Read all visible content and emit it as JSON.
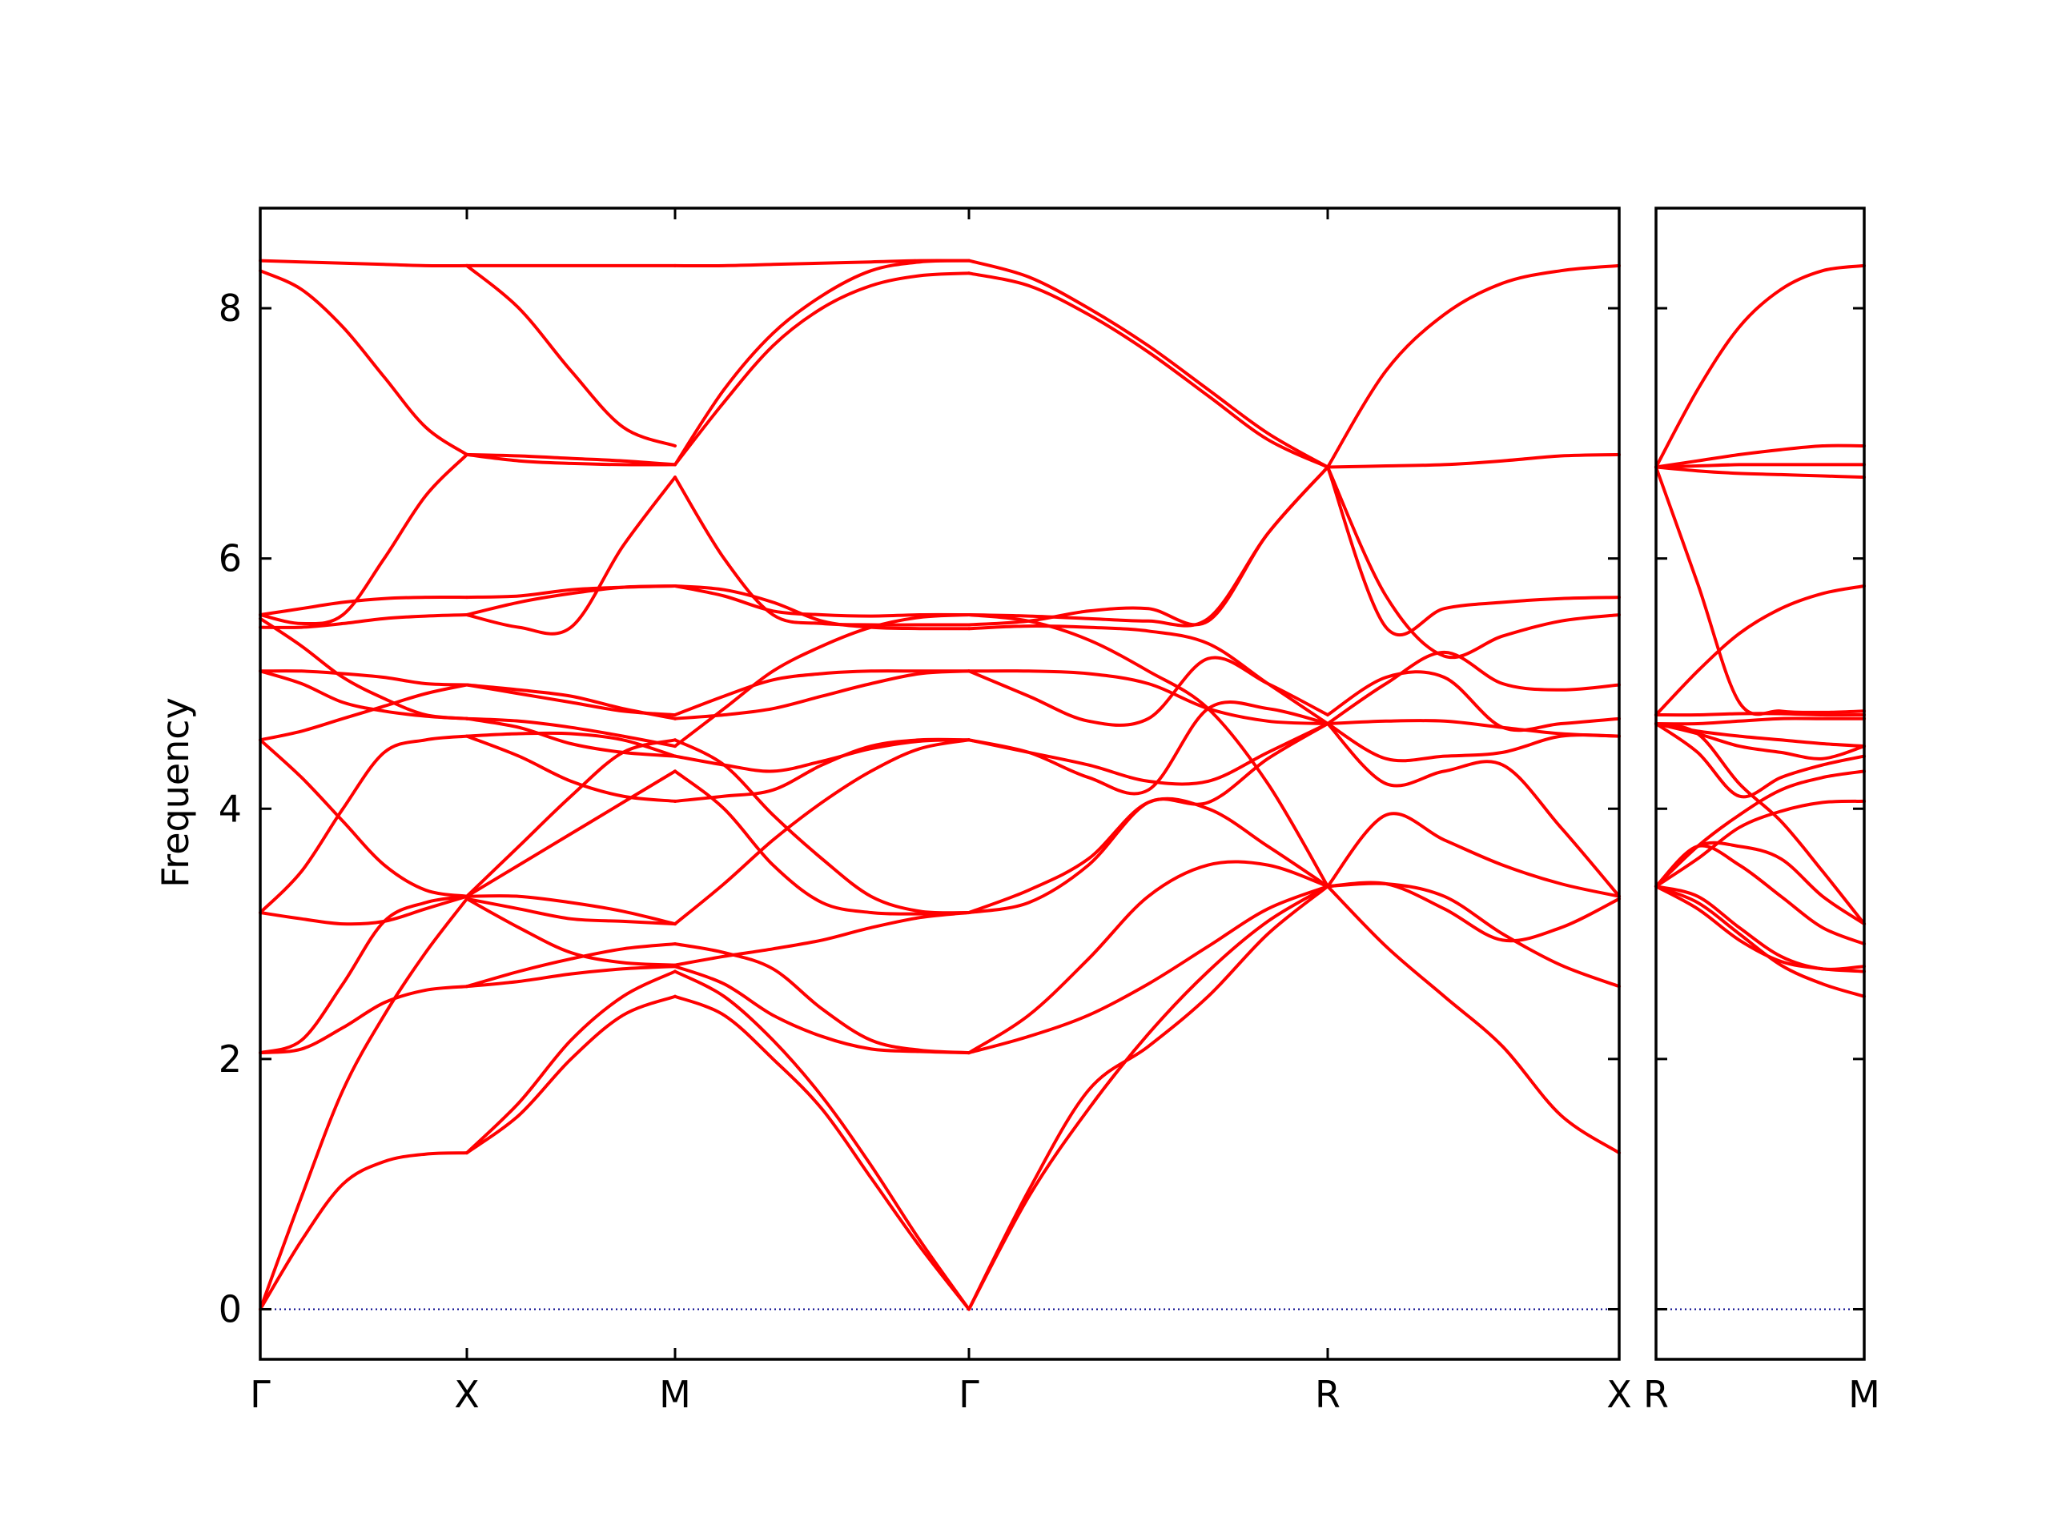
{
  "chart_data": {
    "type": "line",
    "ylabel": "Frequency",
    "ylim": [
      -0.4,
      8.8
    ],
    "yticks": [
      0,
      2,
      4,
      6,
      8
    ],
    "band_color": "#ff0000",
    "zero_line_color": "#00008b",
    "panels": [
      {
        "segments": [
          {
            "labels": [
              "Γ",
              "X"
            ],
            "bands": [
              [
                0.0,
                0.55,
                1.0,
                1.18,
                1.24,
                1.25
              ],
              [
                0.0,
                0.9,
                1.75,
                2.35,
                2.85,
                3.28
              ],
              [
                2.05,
                2.08,
                2.25,
                2.45,
                2.55,
                2.58
              ],
              [
                2.05,
                2.15,
                2.6,
                3.1,
                3.25,
                3.3
              ],
              [
                3.17,
                3.12,
                3.08,
                3.1,
                3.2,
                3.3
              ],
              [
                3.17,
                3.5,
                4.0,
                4.45,
                4.55,
                4.58
              ],
              [
                4.55,
                4.25,
                3.9,
                3.55,
                3.35,
                3.3
              ],
              [
                4.55,
                4.62,
                4.72,
                4.82,
                4.92,
                4.99
              ],
              [
                5.1,
                5.1,
                5.08,
                5.05,
                5.0,
                4.99
              ],
              [
                5.1,
                5.0,
                4.85,
                4.78,
                4.74,
                4.72
              ],
              [
                5.45,
                5.45,
                5.48,
                5.52,
                5.54,
                5.55
              ],
              [
                5.52,
                5.3,
                5.05,
                4.88,
                4.75,
                4.72
              ],
              [
                5.55,
                5.6,
                5.65,
                5.68,
                5.69,
                5.69
              ],
              [
                5.55,
                5.48,
                5.55,
                6.0,
                6.5,
                6.83
              ],
              [
                8.3,
                8.15,
                7.85,
                7.45,
                7.05,
                6.83
              ],
              [
                8.38,
                8.37,
                8.36,
                8.35,
                8.34,
                8.34
              ]
            ]
          },
          {
            "labels": [
              "X",
              "M"
            ],
            "bands": [
              [
                1.25,
                1.55,
                2.0,
                2.35,
                2.5
              ],
              [
                1.25,
                1.65,
                2.15,
                2.5,
                2.7
              ],
              [
                2.58,
                2.62,
                2.68,
                2.72,
                2.74
              ],
              [
                2.58,
                2.7,
                2.8,
                2.88,
                2.92
              ],
              [
                3.28,
                3.05,
                2.85,
                2.77,
                2.75
              ],
              [
                3.28,
                3.2,
                3.12,
                3.1,
                3.08
              ],
              [
                3.3,
                3.3,
                3.25,
                3.18,
                3.08
              ],
              [
                3.3,
                3.55,
                3.8,
                4.05,
                4.3
              ],
              [
                3.3,
                3.7,
                4.1,
                4.45,
                4.55
              ],
              [
                4.58,
                4.6,
                4.6,
                4.55,
                4.42
              ],
              [
                4.58,
                4.42,
                4.22,
                4.1,
                4.06
              ],
              [
                4.72,
                4.65,
                4.52,
                4.45,
                4.42
              ],
              [
                4.72,
                4.7,
                4.65,
                4.58,
                4.5
              ],
              [
                4.99,
                4.95,
                4.9,
                4.8,
                4.72
              ],
              [
                4.99,
                4.92,
                4.85,
                4.78,
                4.75
              ],
              [
                5.55,
                5.65,
                5.72,
                5.77,
                5.78
              ],
              [
                5.69,
                5.7,
                5.75,
                5.77,
                5.78
              ],
              [
                5.55,
                5.45,
                5.45,
                6.1,
                6.65
              ],
              [
                6.83,
                6.82,
                6.8,
                6.78,
                6.75
              ],
              [
                6.83,
                6.78,
                6.76,
                6.75,
                6.75
              ],
              [
                8.34,
                8.0,
                7.5,
                7.05,
                6.9
              ],
              [
                8.34,
                8.34,
                8.34,
                8.34,
                8.34
              ]
            ]
          },
          {
            "labels": [
              "M",
              "Γ"
            ],
            "bands": [
              [
                2.5,
                2.35,
                2.0,
                1.6,
                1.05,
                0.5,
                0.0
              ],
              [
                2.7,
                2.5,
                2.15,
                1.7,
                1.15,
                0.55,
                0.0
              ],
              [
                2.74,
                2.6,
                2.35,
                2.18,
                2.08,
                2.06,
                2.05
              ],
              [
                2.92,
                2.85,
                2.72,
                2.4,
                2.15,
                2.07,
                2.05
              ],
              [
                2.75,
                2.82,
                2.88,
                2.95,
                3.05,
                3.13,
                3.17
              ],
              [
                3.08,
                3.4,
                3.75,
                4.05,
                4.3,
                4.48,
                4.55
              ],
              [
                4.3,
                4.0,
                3.55,
                3.25,
                3.17,
                3.16,
                3.17
              ],
              [
                4.55,
                4.35,
                3.95,
                3.6,
                3.3,
                3.18,
                3.17
              ],
              [
                4.06,
                4.1,
                4.15,
                4.35,
                4.5,
                4.55,
                4.55
              ],
              [
                4.42,
                4.35,
                4.3,
                4.38,
                4.48,
                4.54,
                4.55
              ],
              [
                4.5,
                4.8,
                5.1,
                5.3,
                5.45,
                5.53,
                5.55
              ],
              [
                4.72,
                4.75,
                4.8,
                4.9,
                5.0,
                5.08,
                5.1
              ],
              [
                4.75,
                4.9,
                5.03,
                5.08,
                5.1,
                5.1,
                5.1
              ],
              [
                5.78,
                5.75,
                5.65,
                5.5,
                5.45,
                5.44,
                5.44
              ],
              [
                5.78,
                5.7,
                5.58,
                5.55,
                5.54,
                5.55,
                5.55
              ],
              [
                6.65,
                6.0,
                5.55,
                5.48,
                5.47,
                5.47,
                5.47
              ],
              [
                6.75,
                7.35,
                7.8,
                8.1,
                8.3,
                8.37,
                8.38
              ],
              [
                6.75,
                7.25,
                7.7,
                8.0,
                8.18,
                8.26,
                8.28
              ],
              [
                8.34,
                8.34,
                8.35,
                8.36,
                8.37,
                8.38,
                8.38
              ]
            ]
          },
          {
            "labels": [
              "Γ",
              "R"
            ],
            "bands": [
              [
                0.0,
                0.9,
                1.6,
                2.2,
                2.7,
                3.1,
                3.38
              ],
              [
                0.0,
                0.95,
                1.75,
                2.1,
                2.5,
                3.0,
                3.38
              ],
              [
                2.05,
                2.18,
                2.35,
                2.6,
                2.9,
                3.2,
                3.38
              ],
              [
                2.05,
                2.35,
                2.8,
                3.3,
                3.55,
                3.55,
                3.38
              ],
              [
                3.17,
                3.35,
                3.6,
                4.05,
                4.0,
                3.7,
                3.38
              ],
              [
                3.17,
                3.25,
                3.55,
                4.05,
                4.05,
                4.4,
                4.68
              ],
              [
                4.55,
                4.45,
                4.25,
                4.15,
                4.8,
                4.8,
                4.68
              ],
              [
                4.55,
                4.45,
                4.35,
                4.22,
                4.22,
                4.45,
                4.68
              ],
              [
                5.1,
                4.9,
                4.7,
                4.72,
                5.2,
                5.0,
                4.75
              ],
              [
                5.1,
                5.1,
                5.08,
                5.0,
                4.8,
                4.7,
                4.68
              ],
              [
                5.44,
                5.46,
                5.45,
                5.42,
                5.32,
                5.0,
                4.68
              ],
              [
                5.55,
                5.5,
                5.35,
                5.1,
                4.8,
                4.2,
                3.38
              ],
              [
                5.47,
                5.5,
                5.58,
                5.6,
                5.5,
                6.2,
                6.73
              ],
              [
                5.55,
                5.54,
                5.52,
                5.5,
                5.52,
                6.2,
                6.73
              ],
              [
                8.38,
                8.25,
                8.0,
                7.7,
                7.35,
                7.0,
                6.73
              ],
              [
                8.28,
                8.18,
                7.95,
                7.65,
                7.3,
                6.95,
                6.73
              ]
            ]
          },
          {
            "labels": [
              "R",
              "X"
            ],
            "bands": [
              [
                3.38,
                2.9,
                2.5,
                2.1,
                1.55,
                1.25
              ],
              [
                3.38,
                3.4,
                3.3,
                3.0,
                2.75,
                2.58
              ],
              [
                3.38,
                3.4,
                3.2,
                2.95,
                3.05,
                3.28
              ],
              [
                3.38,
                3.95,
                3.75,
                3.55,
                3.4,
                3.3
              ],
              [
                4.68,
                4.2,
                4.3,
                4.35,
                3.85,
                3.3
              ],
              [
                4.68,
                4.4,
                4.42,
                4.45,
                4.58,
                4.58
              ],
              [
                4.68,
                4.7,
                4.7,
                4.65,
                4.6,
                4.58
              ],
              [
                4.75,
                5.05,
                5.05,
                4.65,
                4.68,
                4.72
              ],
              [
                4.68,
                5.0,
                5.25,
                5.0,
                4.95,
                4.99
              ],
              [
                6.73,
                5.7,
                5.22,
                5.38,
                5.5,
                5.55
              ],
              [
                6.73,
                5.45,
                5.6,
                5.65,
                5.68,
                5.69
              ],
              [
                6.73,
                6.74,
                6.75,
                6.78,
                6.82,
                6.83
              ],
              [
                6.73,
                7.5,
                7.95,
                8.2,
                8.3,
                8.34
              ]
            ]
          }
        ]
      },
      {
        "segments": [
          {
            "labels": [
              "R",
              "M"
            ],
            "bands": [
              [
                3.38,
                3.25,
                3.0,
                2.75,
                2.6,
                2.5
              ],
              [
                3.38,
                3.2,
                2.95,
                2.78,
                2.72,
                2.7
              ],
              [
                3.38,
                3.3,
                3.05,
                2.82,
                2.72,
                2.74
              ],
              [
                3.38,
                3.7,
                3.55,
                3.3,
                3.05,
                2.92
              ],
              [
                3.38,
                3.7,
                3.7,
                3.6,
                3.3,
                3.08
              ],
              [
                3.38,
                3.6,
                3.85,
                3.98,
                4.05,
                4.06
              ],
              [
                3.38,
                3.7,
                3.95,
                4.15,
                4.25,
                4.3
              ],
              [
                4.68,
                4.6,
                4.2,
                3.9,
                3.5,
                3.08
              ],
              [
                4.68,
                4.45,
                4.1,
                4.25,
                4.35,
                4.42
              ],
              [
                4.68,
                4.6,
                4.5,
                4.45,
                4.4,
                4.5
              ],
              [
                4.68,
                4.62,
                4.58,
                4.55,
                4.52,
                4.5
              ],
              [
                4.68,
                4.68,
                4.7,
                4.72,
                4.72,
                4.72
              ],
              [
                4.75,
                4.75,
                4.76,
                4.76,
                4.75,
                4.75
              ],
              [
                4.75,
                5.1,
                5.4,
                5.6,
                5.72,
                5.78
              ],
              [
                6.73,
                5.8,
                4.85,
                4.78,
                4.77,
                4.78
              ],
              [
                6.73,
                6.7,
                6.68,
                6.67,
                6.66,
                6.65
              ],
              [
                6.73,
                6.74,
                6.75,
                6.75,
                6.75,
                6.75
              ],
              [
                6.73,
                6.78,
                6.83,
                6.87,
                6.9,
                6.9
              ],
              [
                6.73,
                7.35,
                7.85,
                8.15,
                8.3,
                8.34
              ]
            ]
          }
        ]
      }
    ]
  }
}
